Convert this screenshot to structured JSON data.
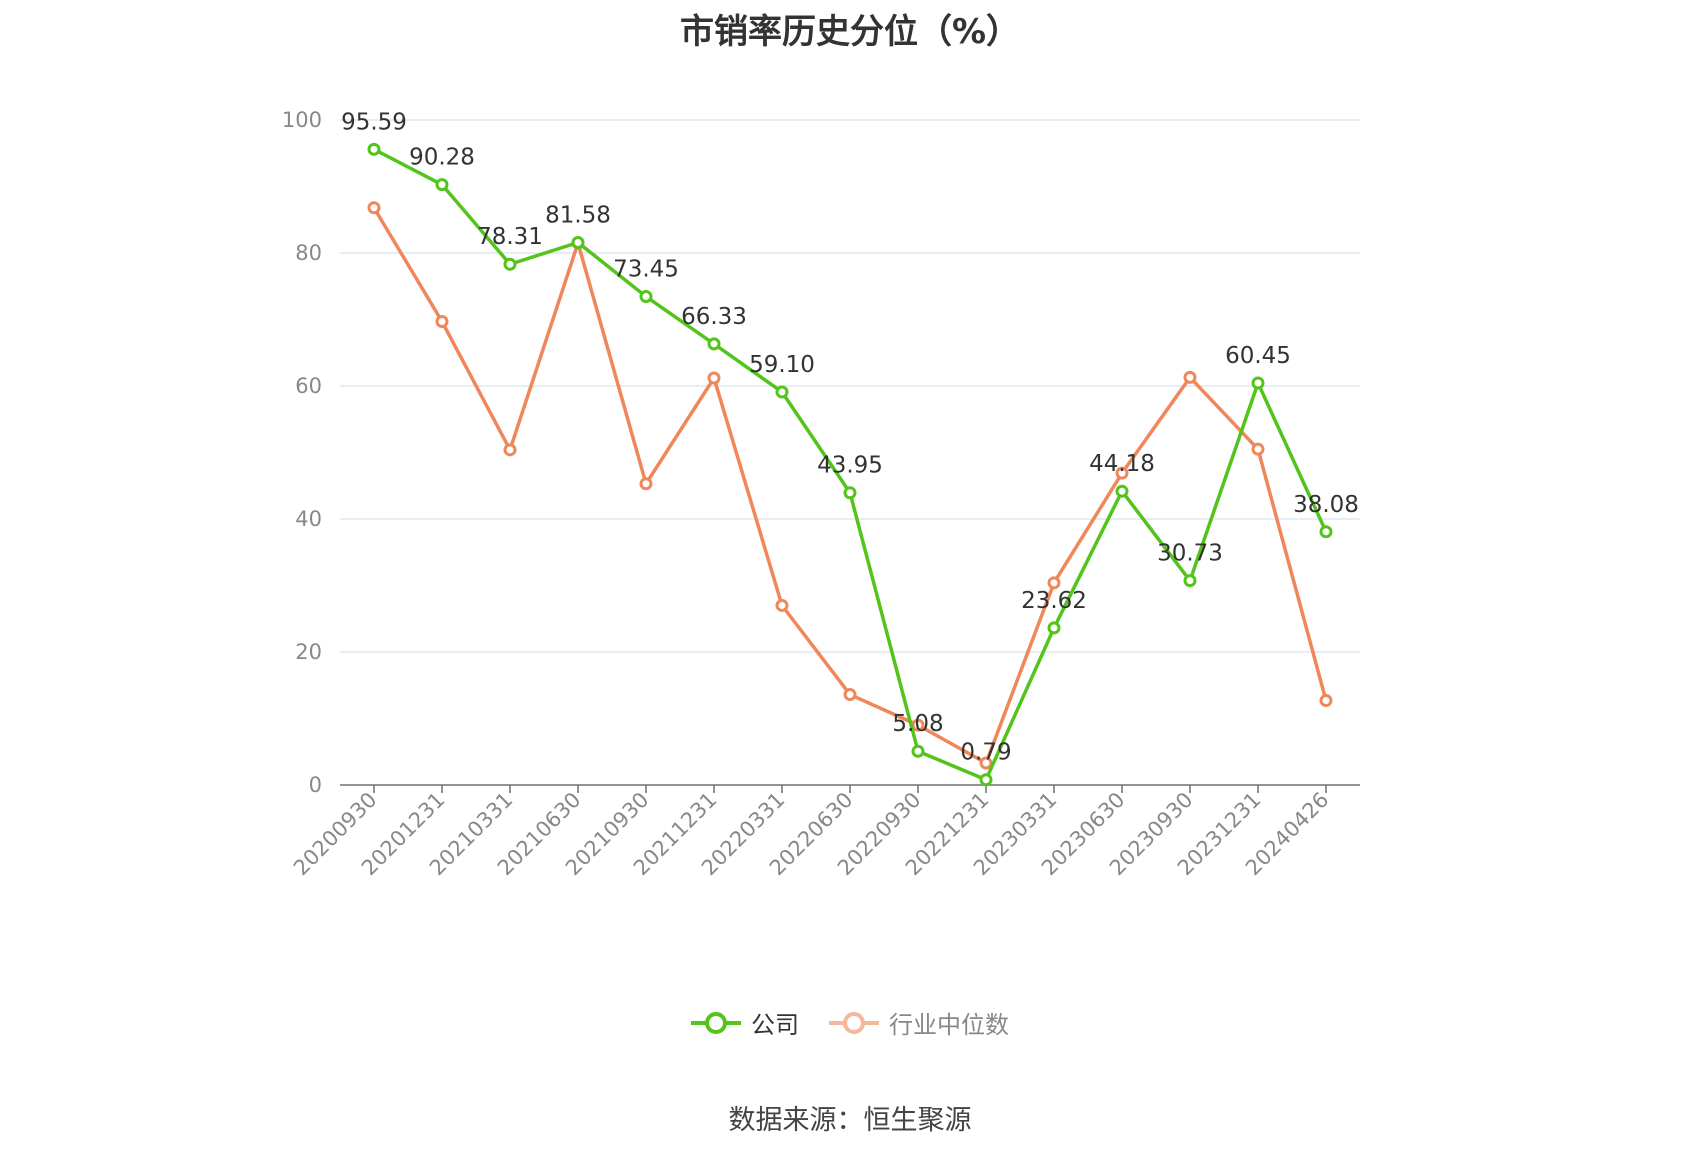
{
  "chart_data": {
    "type": "line",
    "title": "市销率历史分位（%）",
    "categories": [
      "20200930",
      "20201231",
      "20210331",
      "20210630",
      "20210930",
      "20211231",
      "20220331",
      "20220630",
      "20220930",
      "20221231",
      "20230331",
      "20230630",
      "20230930",
      "20231231",
      "20240426"
    ],
    "series": [
      {
        "name": "公司",
        "color": "#52c41a",
        "show_labels": true,
        "values": [
          95.59,
          90.28,
          78.31,
          81.58,
          73.45,
          66.33,
          59.1,
          43.95,
          5.08,
          0.79,
          23.62,
          44.18,
          30.73,
          60.45,
          38.08
        ]
      },
      {
        "name": "行业中位数",
        "color": "#f0875a",
        "show_labels": false,
        "values": [
          86.8,
          69.7,
          50.4,
          81.5,
          45.3,
          61.2,
          27.0,
          13.6,
          9.0,
          3.3,
          30.4,
          46.9,
          61.3,
          50.5,
          12.7
        ]
      }
    ],
    "ylim": [
      0,
      100
    ],
    "yticks": [
      0,
      20,
      40,
      60,
      80,
      100
    ],
    "grid": true,
    "legend_position": "bottom",
    "legend_inactive_text_color": "#888888",
    "source": "数据来源：恒生聚源"
  }
}
